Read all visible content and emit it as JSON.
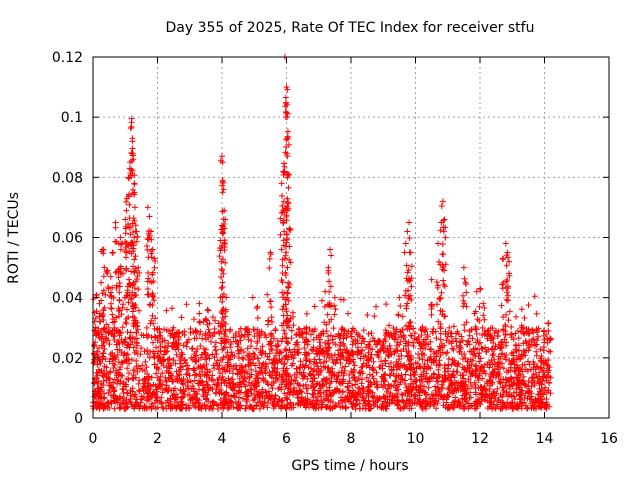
{
  "chart_data": {
    "type": "scatter",
    "title": "Day 355 of 2025, Rate Of TEC Index for receiver stfu",
    "xlabel": "GPS time / hours",
    "ylabel": "ROTI / TECUs",
    "xlim": [
      0,
      16
    ],
    "ylim": [
      0,
      0.12
    ],
    "xticks": [
      0,
      2,
      4,
      6,
      8,
      10,
      12,
      14,
      16
    ],
    "yticks": [
      0,
      0.02,
      0.04,
      0.06,
      0.08,
      0.1,
      0.12
    ],
    "xtick_labels": [
      "0",
      "2",
      "4",
      "6",
      "8",
      "10",
      "12",
      "14",
      "16"
    ],
    "ytick_labels": [
      "0",
      "0.02",
      "0.04",
      "0.06",
      "0.08",
      "0.1",
      "0.12"
    ],
    "grid": true,
    "marker": "+",
    "marker_color": "#ff0000",
    "data_x_range": [
      0,
      14.2
    ],
    "series": [
      {
        "name": "ROTI",
        "x": [
          0.05,
          0.1,
          0.2,
          0.25,
          0.3,
          0.35,
          0.45,
          0.55,
          0.6,
          0.7,
          0.8,
          0.85,
          0.9,
          1.0,
          1.05,
          1.1,
          1.15,
          1.2,
          1.22,
          1.25,
          1.28,
          1.3,
          1.35,
          1.4,
          1.7,
          1.75,
          1.8,
          1.85,
          1.9,
          3.3,
          3.5,
          3.55,
          3.95,
          4.0,
          4.02,
          4.05,
          4.1,
          5.1,
          5.4,
          5.5,
          5.85,
          5.9,
          5.95,
          6.0,
          6.02,
          6.05,
          6.1,
          6.2,
          7.2,
          7.3,
          7.35,
          7.5,
          9.5,
          9.7,
          9.75,
          9.8,
          9.85,
          10.5,
          10.7,
          10.8,
          10.85,
          10.9,
          11.5,
          11.55,
          11.9,
          12.0,
          12.1,
          12.7,
          12.8,
          12.85,
          12.9,
          13.3,
          13.5,
          13.8,
          14.0,
          14.1
        ],
        "y": [
          0.035,
          0.041,
          0.038,
          0.045,
          0.056,
          0.05,
          0.049,
          0.047,
          0.055,
          0.065,
          0.058,
          0.06,
          0.058,
          0.066,
          0.073,
          0.08,
          0.085,
          0.0995,
          0.093,
          0.086,
          0.078,
          0.07,
          0.062,
          0.05,
          0.07,
          0.067,
          0.062,
          0.056,
          0.053,
          0.038,
          0.033,
          0.036,
          0.059,
          0.087,
          0.085,
          0.076,
          0.066,
          0.037,
          0.041,
          0.055,
          0.078,
          0.082,
          0.12,
          0.11,
          0.1,
          0.093,
          0.063,
          0.035,
          0.042,
          0.05,
          0.056,
          0.04,
          0.04,
          0.058,
          0.062,
          0.065,
          0.055,
          0.046,
          0.058,
          0.065,
          0.072,
          0.066,
          0.05,
          0.045,
          0.042,
          0.043,
          0.038,
          0.053,
          0.058,
          0.055,
          0.052,
          0.03,
          0.028,
          0.027,
          0.026,
          0.025
        ]
      }
    ],
    "dense_band": {
      "x_range": [
        0,
        14.2
      ],
      "y_min": 0.003,
      "y_max": 0.03
    }
  }
}
